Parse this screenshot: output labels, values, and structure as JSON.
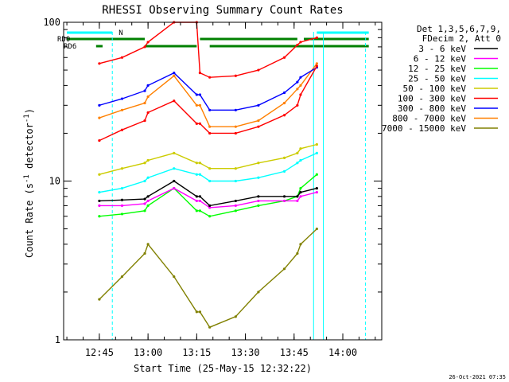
{
  "chart_data": {
    "type": "line",
    "title": "RHESSI Observing Summary Count Rates",
    "xlabel": "Start Time (25-May-15 12:32:22)",
    "ylabel": "Count Rate (s⁻¹ detector⁻¹)",
    "ylabel_parts": [
      "Count Rate (s",
      "-1",
      " detector",
      "-1",
      ")"
    ],
    "yscale": "log",
    "ylim": [
      1,
      100
    ],
    "xlim": [
      "12:34",
      "14:12"
    ],
    "x_ticks": [
      "12:45",
      "13:00",
      "13:15",
      "13:30",
      "13:45",
      "14:00"
    ],
    "y_ticks": [
      "1",
      "10",
      "100"
    ],
    "legend_header": [
      "Det 1,3,5,6,7,9,",
      "FDecim 2, Att 0"
    ],
    "legend_position": "right",
    "footer_timestamp": "26-Oct-2021 07:35",
    "flags": [
      {
        "label": "N",
        "color": "#00ffff",
        "segments": [
          [
            "12:35",
            "12:49"
          ],
          [
            "13:52",
            "14:08"
          ]
        ]
      },
      {
        "label": "RD0",
        "color": "#008000",
        "segments": [
          [
            "12:35",
            "12:59"
          ],
          [
            "13:16",
            "13:46"
          ],
          [
            "13:48",
            "14:08"
          ]
        ]
      },
      {
        "label": "RD6",
        "color": "#008000",
        "segments": [
          [
            "12:44",
            "12:46"
          ],
          [
            "12:59",
            "13:15"
          ],
          [
            "13:19",
            "14:08"
          ]
        ]
      }
    ],
    "vertical_lines": [
      {
        "time": "12:49",
        "style": "dashed",
        "color": "#00ffff"
      },
      {
        "time": "13:51",
        "style": "solid",
        "color": "#00ffff"
      },
      {
        "time": "13:54",
        "style": "solid",
        "color": "#00ffff"
      },
      {
        "time": "14:07",
        "style": "dashed",
        "color": "#00ffff"
      }
    ],
    "x": [
      "12:45",
      "12:52",
      "12:59",
      "13:00",
      "13:08",
      "13:15",
      "13:16",
      "13:19",
      "13:27",
      "13:34",
      "13:42",
      "13:46",
      "13:47",
      "13:52"
    ],
    "series": [
      {
        "name": "3 - 6 keV",
        "color": "#000000",
        "values": [
          7.5,
          7.6,
          7.7,
          8,
          10,
          8,
          8,
          7,
          7.5,
          8,
          8,
          8,
          8.5,
          9
        ]
      },
      {
        "name": "6 - 12 keV",
        "color": "#ff00ff",
        "values": [
          7,
          7,
          7.2,
          7.5,
          9,
          7.5,
          7.5,
          6.8,
          7,
          7.5,
          7.5,
          7.5,
          8,
          8.5
        ]
      },
      {
        "name": "12 - 25 keV",
        "color": "#00ff00",
        "values": [
          6,
          6.2,
          6.5,
          7,
          9,
          6.5,
          6.5,
          6,
          6.5,
          7,
          7.5,
          8,
          9,
          11
        ]
      },
      {
        "name": "25 - 50 keV",
        "color": "#00ffff",
        "values": [
          8.5,
          9,
          10,
          10.5,
          12,
          11,
          11,
          10,
          10,
          10.5,
          11.5,
          13,
          13.5,
          15
        ]
      },
      {
        "name": "50 - 100 keV",
        "color": "#cccc00",
        "values": [
          11,
          12,
          13,
          13.5,
          15,
          13,
          13,
          12,
          12,
          13,
          14,
          15,
          16,
          17
        ]
      },
      {
        "name": "100 - 300 keV",
        "color": "#ff0000",
        "values": [
          18,
          21,
          24,
          27,
          32,
          23,
          23,
          20,
          20,
          22,
          26,
          30,
          35,
          53
        ]
      },
      {
        "name": "300 - 800 keV",
        "color": "#0000ff",
        "values": [
          30,
          33,
          37,
          40,
          48,
          35,
          35,
          28,
          28,
          30,
          36,
          42,
          45,
          52
        ]
      },
      {
        "name": "800 - 7000 keV",
        "color": "#ff8000",
        "values": [
          25,
          28,
          31,
          34,
          46,
          30,
          30,
          22,
          22,
          24,
          31,
          38,
          40,
          55
        ]
      },
      {
        "name": "7000 - 15000 keV",
        "color": "#808000",
        "values": [
          1.8,
          2.5,
          3.5,
          4,
          2.5,
          1.5,
          1.5,
          1.2,
          1.4,
          2,
          2.8,
          3.5,
          4,
          5
        ]
      }
    ],
    "top_red_curve": {
      "color": "#ff0000",
      "values": [
        55,
        60,
        70,
        75,
        100,
        100,
        48,
        45,
        46,
        50,
        60,
        72,
        75,
        80
      ]
    }
  }
}
